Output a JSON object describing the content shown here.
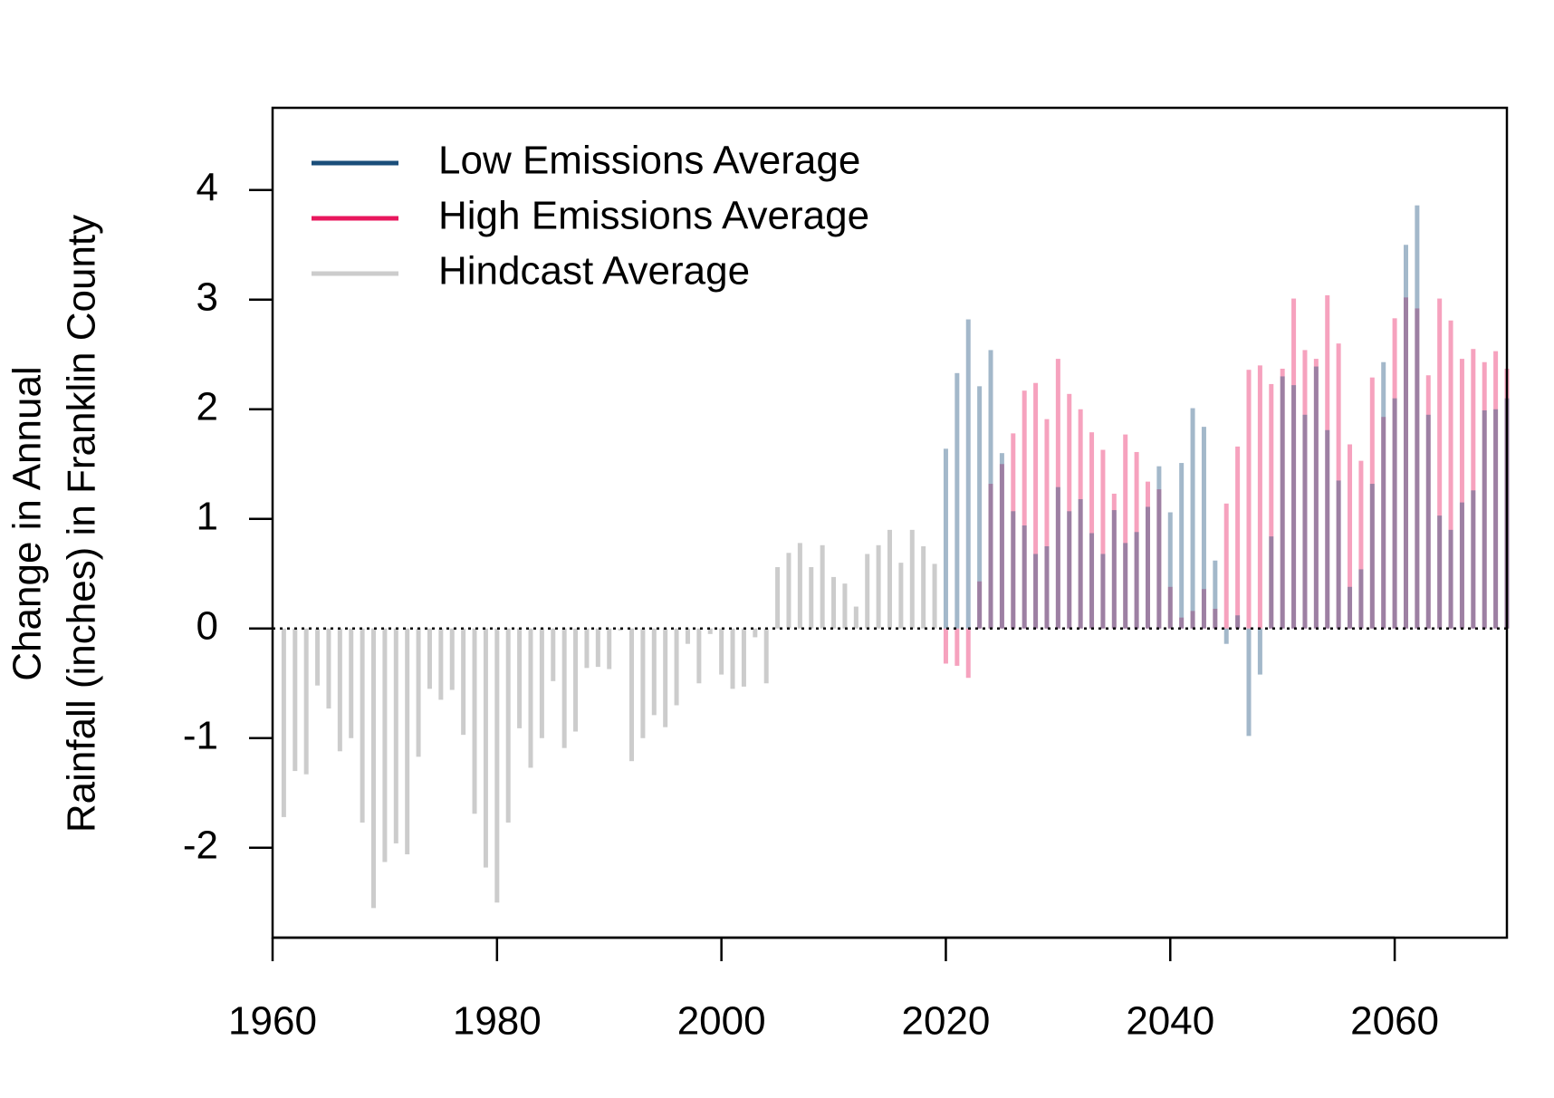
{
  "chart_data": {
    "type": "bar",
    "ylabel": [
      "Change in Annual",
      "Rainfall (inches) in Franklin County"
    ],
    "xlim": [
      1960,
      2070
    ],
    "ylim": [
      -2.82,
      4.75
    ],
    "xticks": [
      1960,
      1980,
      2000,
      2020,
      2040,
      2060
    ],
    "yticks": [
      -2,
      -1,
      0,
      1,
      2,
      3,
      4
    ],
    "hline": 0,
    "legend": "top-left",
    "series": [
      {
        "name": "Low Emissions Average",
        "color": "#1a4e7a",
        "alpha": 0.4,
        "x": [
          2020,
          2021,
          2022,
          2023,
          2024,
          2025,
          2026,
          2027,
          2028,
          2029,
          2030,
          2031,
          2032,
          2033,
          2034,
          2035,
          2036,
          2037,
          2038,
          2039,
          2040,
          2041,
          2042,
          2043,
          2044,
          2045,
          2046,
          2047,
          2048,
          2049,
          2050,
          2051,
          2052,
          2053,
          2054,
          2055,
          2056,
          2057,
          2058,
          2059,
          2060,
          2061,
          2062,
          2063,
          2064,
          2065,
          2066,
          2067,
          2068,
          2069,
          2070
        ],
        "values": [
          1.64,
          2.33,
          2.82,
          2.21,
          2.54,
          1.6,
          1.07,
          0.94,
          0.68,
          0.75,
          1.29,
          1.07,
          1.18,
          0.87,
          0.68,
          1.08,
          0.78,
          0.88,
          1.11,
          1.48,
          1.06,
          1.51,
          2.01,
          1.84,
          0.62,
          -0.14,
          0.12,
          -0.98,
          -0.42,
          0.84,
          2.3,
          2.22,
          1.95,
          2.39,
          1.81,
          1.35,
          0.38,
          0.54,
          1.32,
          2.43,
          2.1,
          3.5,
          3.86,
          1.95,
          1.03,
          0.9,
          1.15,
          1.26,
          1.99,
          2.0,
          2.1
        ]
      },
      {
        "name": "High Emissions Average",
        "color": "#e8175d",
        "alpha": 0.4,
        "x": [
          2020,
          2021,
          2022,
          2023,
          2024,
          2025,
          2026,
          2027,
          2028,
          2029,
          2030,
          2031,
          2032,
          2033,
          2034,
          2035,
          2036,
          2037,
          2038,
          2039,
          2040,
          2041,
          2042,
          2043,
          2044,
          2045,
          2046,
          2047,
          2048,
          2049,
          2050,
          2051,
          2052,
          2053,
          2054,
          2055,
          2056,
          2057,
          2058,
          2059,
          2060,
          2061,
          2062,
          2063,
          2064,
          2065,
          2066,
          2067,
          2068,
          2069,
          2070
        ],
        "values": [
          -0.32,
          -0.34,
          -0.45,
          0.43,
          1.32,
          1.5,
          1.78,
          2.17,
          2.24,
          1.91,
          2.46,
          2.14,
          2.0,
          1.79,
          1.63,
          1.23,
          1.77,
          1.61,
          1.34,
          1.27,
          0.38,
          0.1,
          0.16,
          0.36,
          0.18,
          1.14,
          1.66,
          2.36,
          2.4,
          2.23,
          2.37,
          3.01,
          2.54,
          2.46,
          3.04,
          2.6,
          1.68,
          1.53,
          2.29,
          1.93,
          2.83,
          3.02,
          2.92,
          2.31,
          3.01,
          2.81,
          2.46,
          2.55,
          2.43,
          2.53,
          2.37
        ]
      },
      {
        "name": "Hindcast Average",
        "color": "#cccccc",
        "alpha": 1,
        "x": [
          1961,
          1962,
          1963,
          1964,
          1965,
          1966,
          1967,
          1968,
          1969,
          1970,
          1971,
          1972,
          1973,
          1974,
          1975,
          1976,
          1977,
          1978,
          1979,
          1980,
          1981,
          1982,
          1983,
          1984,
          1985,
          1986,
          1987,
          1988,
          1989,
          1990,
          1991,
          1992,
          1993,
          1994,
          1995,
          1996,
          1997,
          1998,
          1999,
          2000,
          2001,
          2002,
          2003,
          2004,
          2005,
          2006,
          2007,
          2008,
          2009,
          2010,
          2011,
          2012,
          2013,
          2014,
          2015,
          2016,
          2017,
          2018,
          2019
        ],
        "values": [
          -1.72,
          -1.3,
          -1.33,
          -0.52,
          -0.73,
          -1.12,
          -1.0,
          -1.77,
          -2.55,
          -2.13,
          -1.96,
          -2.06,
          -1.17,
          -0.55,
          -0.65,
          -0.56,
          -0.97,
          -1.69,
          -2.18,
          -2.5,
          -1.77,
          -0.91,
          -1.27,
          -1.0,
          -0.48,
          -1.09,
          -0.94,
          -0.36,
          -0.35,
          -0.37,
          -0.02,
          -1.21,
          -1.0,
          -0.79,
          -0.9,
          -0.7,
          -0.14,
          -0.5,
          -0.05,
          -0.42,
          -0.55,
          -0.53,
          -0.08,
          -0.5,
          0.56,
          0.69,
          0.78,
          0.56,
          0.76,
          0.47,
          0.41,
          0.2,
          0.68,
          0.76,
          0.9,
          0.6,
          0.9,
          0.75,
          0.59
        ]
      }
    ]
  }
}
